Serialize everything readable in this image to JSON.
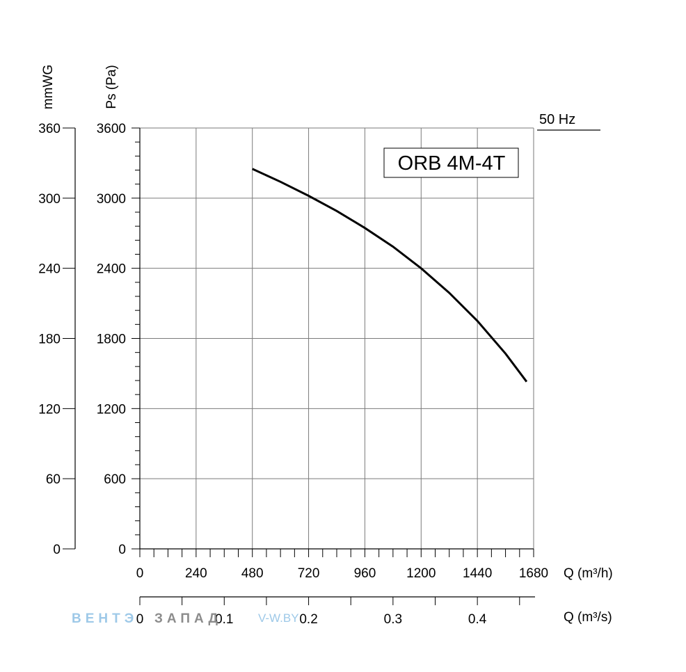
{
  "chart_data": {
    "type": "line",
    "title": "ORB 4M-4T",
    "frequency_label": "50 Hz",
    "x_primary": {
      "label": "Q (m³/h)",
      "range": [
        0,
        1680
      ],
      "ticks": [
        "0",
        "240",
        "480",
        "720",
        "960",
        "1200",
        "1440",
        "1680"
      ]
    },
    "x_secondary": {
      "label": "Q (m³/s)",
      "ticks": [
        "0",
        "0.1",
        "0.2",
        "0.3",
        "0.4"
      ]
    },
    "y_primary": {
      "label": "Ps (Pa)",
      "range": [
        0,
        3600
      ],
      "ticks": [
        "0",
        "600",
        "1200",
        "1800",
        "2400",
        "3000",
        "3600"
      ]
    },
    "y_secondary": {
      "label": "mmWG",
      "range": [
        0,
        360
      ],
      "ticks": [
        "0",
        "60",
        "120",
        "180",
        "240",
        "300",
        "360"
      ]
    },
    "grid": true,
    "series": [
      {
        "x": [
          480,
          600,
          720,
          840,
          960,
          1080,
          1200,
          1320,
          1440,
          1560,
          1650
        ],
        "y": [
          3250,
          3140,
          3020,
          2890,
          2745,
          2585,
          2400,
          2190,
          1950,
          1670,
          1430
        ]
      }
    ]
  },
  "watermark": {
    "part1": "ВЕНТЭ",
    "part2": "ЗАПАД",
    "site": "V-W.BY"
  }
}
